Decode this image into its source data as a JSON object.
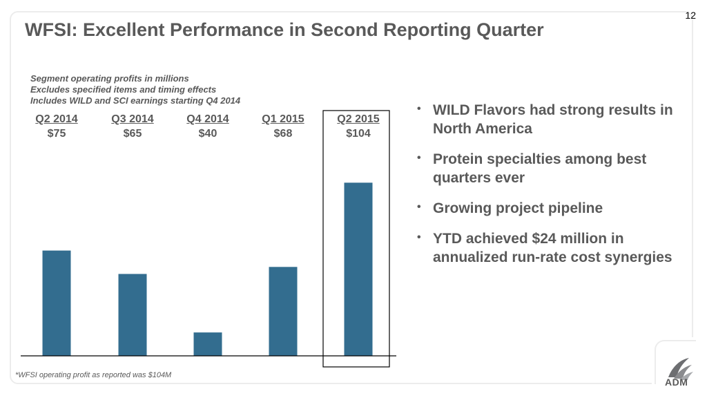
{
  "page_number": "12",
  "title": "WFSI: Excellent Performance in Second Reporting Quarter",
  "subtitle_lines": [
    "Segment operating profits in millions",
    "Excludes specified items and timing effects",
    "Includes WILD and SCI earnings starting Q4 2014"
  ],
  "bullets": [
    "WILD Flavors had strong results in North America",
    "Protein specialties among best quarters ever",
    "Growing project pipeline",
    "YTD achieved $24 million in annualized run-rate cost synergies"
  ],
  "footnote": "*WFSI operating profit as reported was $104M",
  "logo_text": "ADM",
  "colors": {
    "bar": "#336d8f",
    "text": "#595959",
    "frame": "#ececec"
  },
  "chart_data": {
    "type": "bar",
    "categories": [
      "Q2 2014",
      "Q3 2014",
      "Q4 2014",
      "Q1 2015",
      "Q2 2015"
    ],
    "values": [
      75,
      65,
      40,
      68,
      104
    ],
    "value_labels": [
      "$75",
      "$65",
      "$40",
      "$68",
      "$104"
    ],
    "highlighted_category": "Q2 2015",
    "title": "",
    "xlabel": "",
    "ylabel": "",
    "ylim": [
      30,
      105
    ],
    "grid": false,
    "legend": "none"
  }
}
